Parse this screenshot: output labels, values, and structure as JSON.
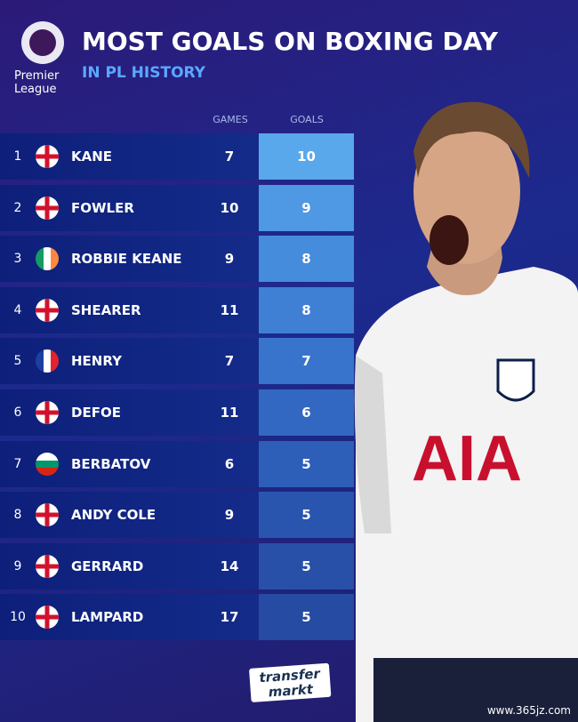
{
  "header": {
    "logo_text": "Premier League",
    "title": "MOST GOALS ON BOXING DAY",
    "subtitle": "IN PL HISTORY"
  },
  "table": {
    "columns": [
      "GAMES",
      "GOALS"
    ],
    "rows": [
      {
        "rank": "1",
        "name": "KANE",
        "games": "7",
        "goals": "10"
      },
      {
        "rank": "2",
        "name": "FOWLER",
        "games": "10",
        "goals": "9"
      },
      {
        "rank": "3",
        "name": "ROBBIE KEANE",
        "games": "9",
        "goals": "8"
      },
      {
        "rank": "4",
        "name": "SHEARER",
        "games": "11",
        "goals": "8"
      },
      {
        "rank": "5",
        "name": "HENRY",
        "games": "7",
        "goals": "7"
      },
      {
        "rank": "6",
        "name": "DEFOE",
        "games": "11",
        "goals": "6"
      },
      {
        "rank": "7",
        "name": "BERBATOV",
        "games": "6",
        "goals": "5"
      },
      {
        "rank": "8",
        "name": "ANDY COLE",
        "games": "9",
        "goals": "5"
      },
      {
        "rank": "9",
        "name": "GERRARD",
        "games": "14",
        "goals": "5"
      },
      {
        "rank": "10",
        "name": "LAMPARD",
        "games": "17",
        "goals": "5"
      }
    ]
  },
  "photo": {
    "shirt_text": "AIA"
  },
  "footer": {
    "logo_line1": "transfer",
    "logo_line2": "markt",
    "watermark": "www.365jz.com"
  }
}
